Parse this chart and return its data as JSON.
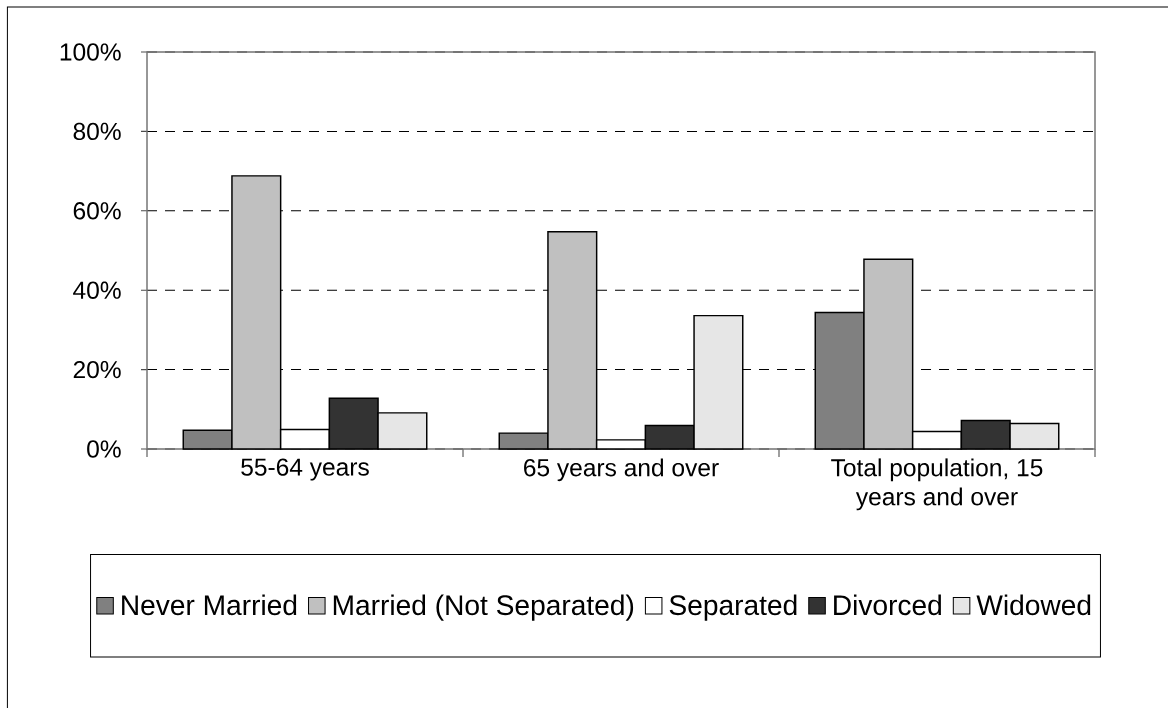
{
  "chart_data": {
    "type": "bar",
    "categories": [
      "55-64 years",
      "65 years and over",
      "Total population, 15 years and over"
    ],
    "series": [
      {
        "name": "Never Married",
        "color": "#808080",
        "values": [
          4.7,
          4.0,
          34.4
        ]
      },
      {
        "name": "Married (Not Separated)",
        "color": "#c0c0c0",
        "values": [
          68.8,
          54.7,
          47.8
        ]
      },
      {
        "name": "Separated",
        "color": "#ffffff",
        "values": [
          4.9,
          2.3,
          4.4
        ]
      },
      {
        "name": "Divorced",
        "color": "#333333",
        "values": [
          12.8,
          5.9,
          7.2
        ]
      },
      {
        "name": "Widowed",
        "color": "#e6e6e6",
        "values": [
          9.1,
          33.6,
          6.4
        ]
      }
    ],
    "ylim": [
      0,
      100
    ],
    "yticks": [
      {
        "value": 0,
        "label": "0%"
      },
      {
        "value": 20,
        "label": "20%"
      },
      {
        "value": 40,
        "label": "40%"
      },
      {
        "value": 60,
        "label": "60%"
      },
      {
        "value": 80,
        "label": "80%"
      },
      {
        "value": 100,
        "label": "100%"
      }
    ],
    "grid": "y",
    "legend": "bottom"
  }
}
